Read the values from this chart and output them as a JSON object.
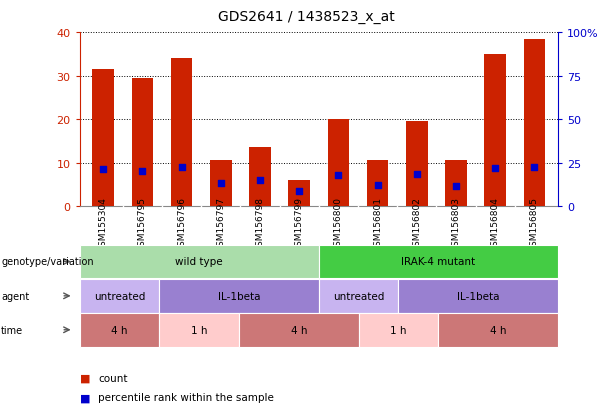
{
  "title": "GDS2641 / 1438523_x_at",
  "samples": [
    "GSM155304",
    "GSM156795",
    "GSM156796",
    "GSM156797",
    "GSM156798",
    "GSM156799",
    "GSM156800",
    "GSM156801",
    "GSM156802",
    "GSM156803",
    "GSM156804",
    "GSM156805"
  ],
  "count_values": [
    31.5,
    29.5,
    34.0,
    10.5,
    13.5,
    6.0,
    20.0,
    10.5,
    19.5,
    10.5,
    35.0,
    38.5
  ],
  "percentile_values": [
    21.0,
    20.0,
    22.5,
    13.0,
    15.0,
    8.5,
    18.0,
    12.0,
    18.5,
    11.5,
    22.0,
    22.5
  ],
  "left_ylim": [
    0,
    40
  ],
  "right_ylim": [
    0,
    100
  ],
  "left_yticks": [
    0,
    10,
    20,
    30,
    40
  ],
  "right_yticks": [
    0,
    25,
    50,
    75,
    100
  ],
  "right_yticklabels": [
    "0",
    "25",
    "50",
    "75",
    "100%"
  ],
  "bar_color": "#cc2200",
  "dot_color": "#0000cc",
  "dot_size": 25,
  "background_color": "#ffffff",
  "grid_color": "#000000",
  "annotation_rows": [
    {
      "label": "genotype/variation",
      "segments": [
        {
          "text": "wild type",
          "span": [
            0,
            6
          ],
          "color": "#aaddaa"
        },
        {
          "text": "IRAK-4 mutant",
          "span": [
            6,
            12
          ],
          "color": "#44cc44"
        }
      ]
    },
    {
      "label": "agent",
      "segments": [
        {
          "text": "untreated",
          "span": [
            0,
            2
          ],
          "color": "#c8b4f0"
        },
        {
          "text": "IL-1beta",
          "span": [
            2,
            6
          ],
          "color": "#9980d0"
        },
        {
          "text": "untreated",
          "span": [
            6,
            8
          ],
          "color": "#c8b4f0"
        },
        {
          "text": "IL-1beta",
          "span": [
            8,
            12
          ],
          "color": "#9980d0"
        }
      ]
    },
    {
      "label": "time",
      "segments": [
        {
          "text": "4 h",
          "span": [
            0,
            2
          ],
          "color": "#cc7777"
        },
        {
          "text": "1 h",
          "span": [
            2,
            4
          ],
          "color": "#ffcccc"
        },
        {
          "text": "4 h",
          "span": [
            4,
            7
          ],
          "color": "#cc7777"
        },
        {
          "text": "1 h",
          "span": [
            7,
            9
          ],
          "color": "#ffcccc"
        },
        {
          "text": "4 h",
          "span": [
            9,
            12
          ],
          "color": "#cc7777"
        }
      ]
    }
  ],
  "xtick_bg_color": "#cccccc",
  "legend_items": [
    {
      "label": "count",
      "color": "#cc2200"
    },
    {
      "label": "percentile rank within the sample",
      "color": "#0000cc"
    }
  ]
}
